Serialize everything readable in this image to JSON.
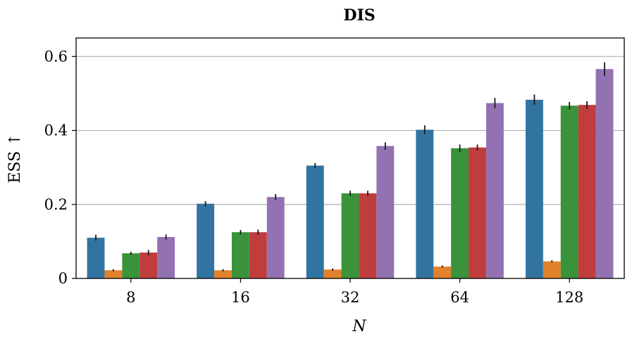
{
  "chart_data": {
    "type": "bar",
    "title": "DIS",
    "xlabel": "N",
    "ylabel": "ESS ↑",
    "categories": [
      "8",
      "16",
      "32",
      "64",
      "128"
    ],
    "ylim": [
      0,
      0.65
    ],
    "yticks": [
      0,
      0.2,
      0.4,
      0.6
    ],
    "ytick_labels": [
      "0",
      "0.2",
      "0.4",
      "0.6"
    ],
    "grid": "y",
    "legend": "none",
    "series": [
      {
        "color": "#3274a1",
        "values": [
          0.11,
          0.202,
          0.305,
          0.402,
          0.483
        ],
        "errors": [
          0.008,
          0.007,
          0.007,
          0.012,
          0.014
        ]
      },
      {
        "color": "#e1812c",
        "values": [
          0.022,
          0.022,
          0.024,
          0.032,
          0.046
        ],
        "errors": [
          0.003,
          0.003,
          0.003,
          0.003,
          0.003
        ]
      },
      {
        "color": "#3a923a",
        "values": [
          0.068,
          0.125,
          0.23,
          0.352,
          0.467
        ],
        "errors": [
          0.004,
          0.006,
          0.007,
          0.01,
          0.01
        ]
      },
      {
        "color": "#c03d3e",
        "values": [
          0.07,
          0.125,
          0.23,
          0.354,
          0.469
        ],
        "errors": [
          0.007,
          0.007,
          0.007,
          0.008,
          0.01
        ]
      },
      {
        "color": "#9372b2",
        "values": [
          0.112,
          0.22,
          0.358,
          0.474,
          0.566
        ],
        "errors": [
          0.007,
          0.008,
          0.01,
          0.014,
          0.018
        ]
      }
    ]
  }
}
